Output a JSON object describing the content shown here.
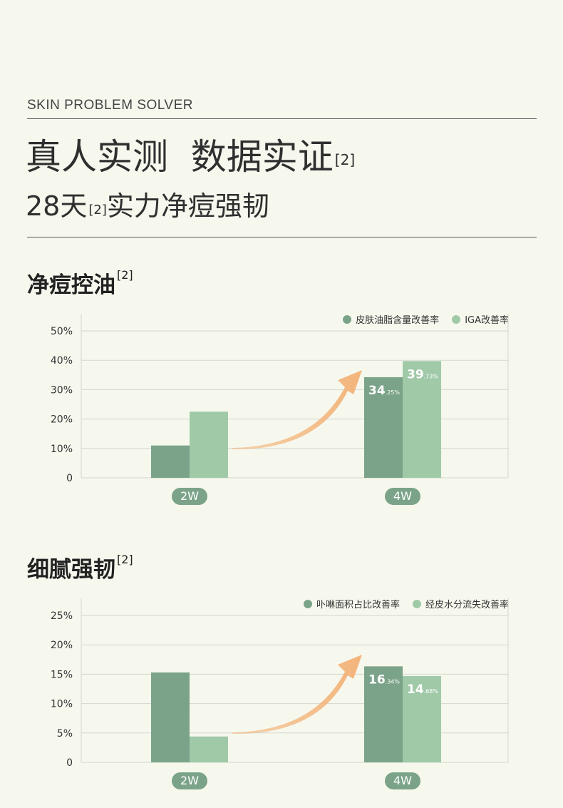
{
  "header": {
    "eyebrow": "SKIN PROBLEM SOLVER",
    "headline": "真人实测  数据实证",
    "headline_ref": "[2]",
    "subhead_prefix": "28天",
    "subhead_ref": "[2]",
    "subhead_suffix": "实力净痘强韧"
  },
  "colors": {
    "dark": "#7ba389",
    "light": "#a0c9a8",
    "arrow": "#f3b47a",
    "grid": "#d4d6cf",
    "pill": "#7ba389"
  },
  "chart_data": [
    {
      "type": "bar",
      "title": "净痘控油",
      "title_ref": "[2]",
      "categories": [
        "2W",
        "4W"
      ],
      "yticks": [
        "0",
        "10%",
        "20%",
        "30%",
        "40%",
        "50%"
      ],
      "ylim": [
        0,
        50
      ],
      "grid": true,
      "legend_position": "top-right",
      "series": [
        {
          "name": "皮肤油脂含量改善率",
          "values": [
            11,
            34.25
          ],
          "labels": [
            null,
            {
              "main": "34",
              "dec": ".25%"
            }
          ]
        },
        {
          "name": "IGA改善率",
          "values": [
            22.5,
            39.73
          ],
          "labels": [
            null,
            {
              "main": "39",
              "dec": ".73%"
            }
          ]
        }
      ]
    },
    {
      "type": "bar",
      "title": "细腻强韧",
      "title_ref": "[2]",
      "categories": [
        "2W",
        "4W"
      ],
      "yticks": [
        "0",
        "5%",
        "10%",
        "15%",
        "20%",
        "25%"
      ],
      "ylim": [
        0,
        25
      ],
      "grid": true,
      "legend_position": "top-right",
      "series": [
        {
          "name": "卟啉面积占比改善率",
          "values": [
            15.3,
            16.34
          ],
          "labels": [
            null,
            {
              "main": "16",
              "dec": ".34%"
            }
          ]
        },
        {
          "name": "经皮水分流失改善率",
          "values": [
            4.4,
            14.68
          ],
          "labels": [
            null,
            {
              "main": "14",
              "dec": ".68%"
            }
          ]
        }
      ]
    }
  ]
}
